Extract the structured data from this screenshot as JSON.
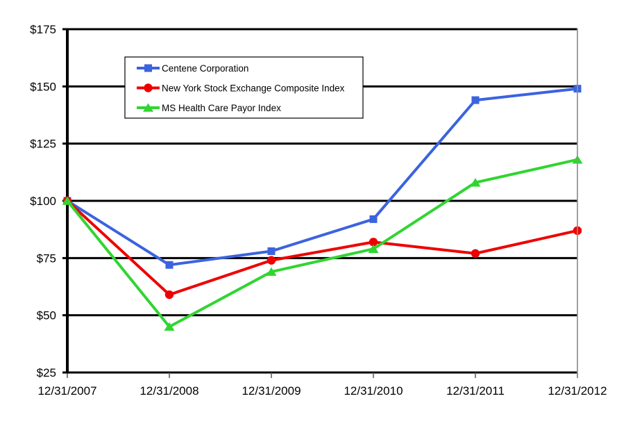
{
  "chart_data": {
    "type": "line",
    "title": "",
    "categories": [
      "12/31/2007",
      "12/31/2008",
      "12/31/2009",
      "12/31/2010",
      "12/31/2011",
      "12/31/2012"
    ],
    "series": [
      {
        "name": "Centene Corporation",
        "color": "#3B63DF",
        "marker": "square",
        "values": [
          100,
          72,
          78,
          92,
          144,
          149
        ]
      },
      {
        "name": "New York Stock Exchange Composite Index",
        "color": "#EE0000",
        "marker": "circle",
        "values": [
          100,
          59,
          74,
          82,
          77,
          87
        ]
      },
      {
        "name": "MS Health Care Payor Index",
        "color": "#30D530",
        "marker": "triangle",
        "values": [
          100,
          45,
          69,
          79,
          108,
          118
        ]
      }
    ],
    "y_axis": {
      "min": 25,
      "max": 175,
      "step": 25,
      "tick_labels": [
        "$25",
        "$50",
        "$75",
        "$100",
        "$125",
        "$150",
        "$175"
      ]
    },
    "x_axis": {
      "tick_labels": [
        "12/31/2007",
        "12/31/2008",
        "12/31/2009",
        "12/31/2010",
        "12/31/2011",
        "12/31/2012"
      ]
    },
    "legend": {
      "position": "top-left-inside",
      "entries": [
        "Centene Corporation",
        "New York Stock Exchange Composite Index",
        "MS Health Care Payor Index"
      ]
    },
    "grid": "horizontal",
    "styles": {
      "background": "#FFFFFF",
      "gridline_color": "#000000",
      "axis_color": "#000000",
      "right_border_color": "#909090",
      "tick_color": "#555555",
      "text_color": "#000000",
      "legend_border_color": "#000000",
      "legend_fill": "#FFFFFF"
    }
  }
}
